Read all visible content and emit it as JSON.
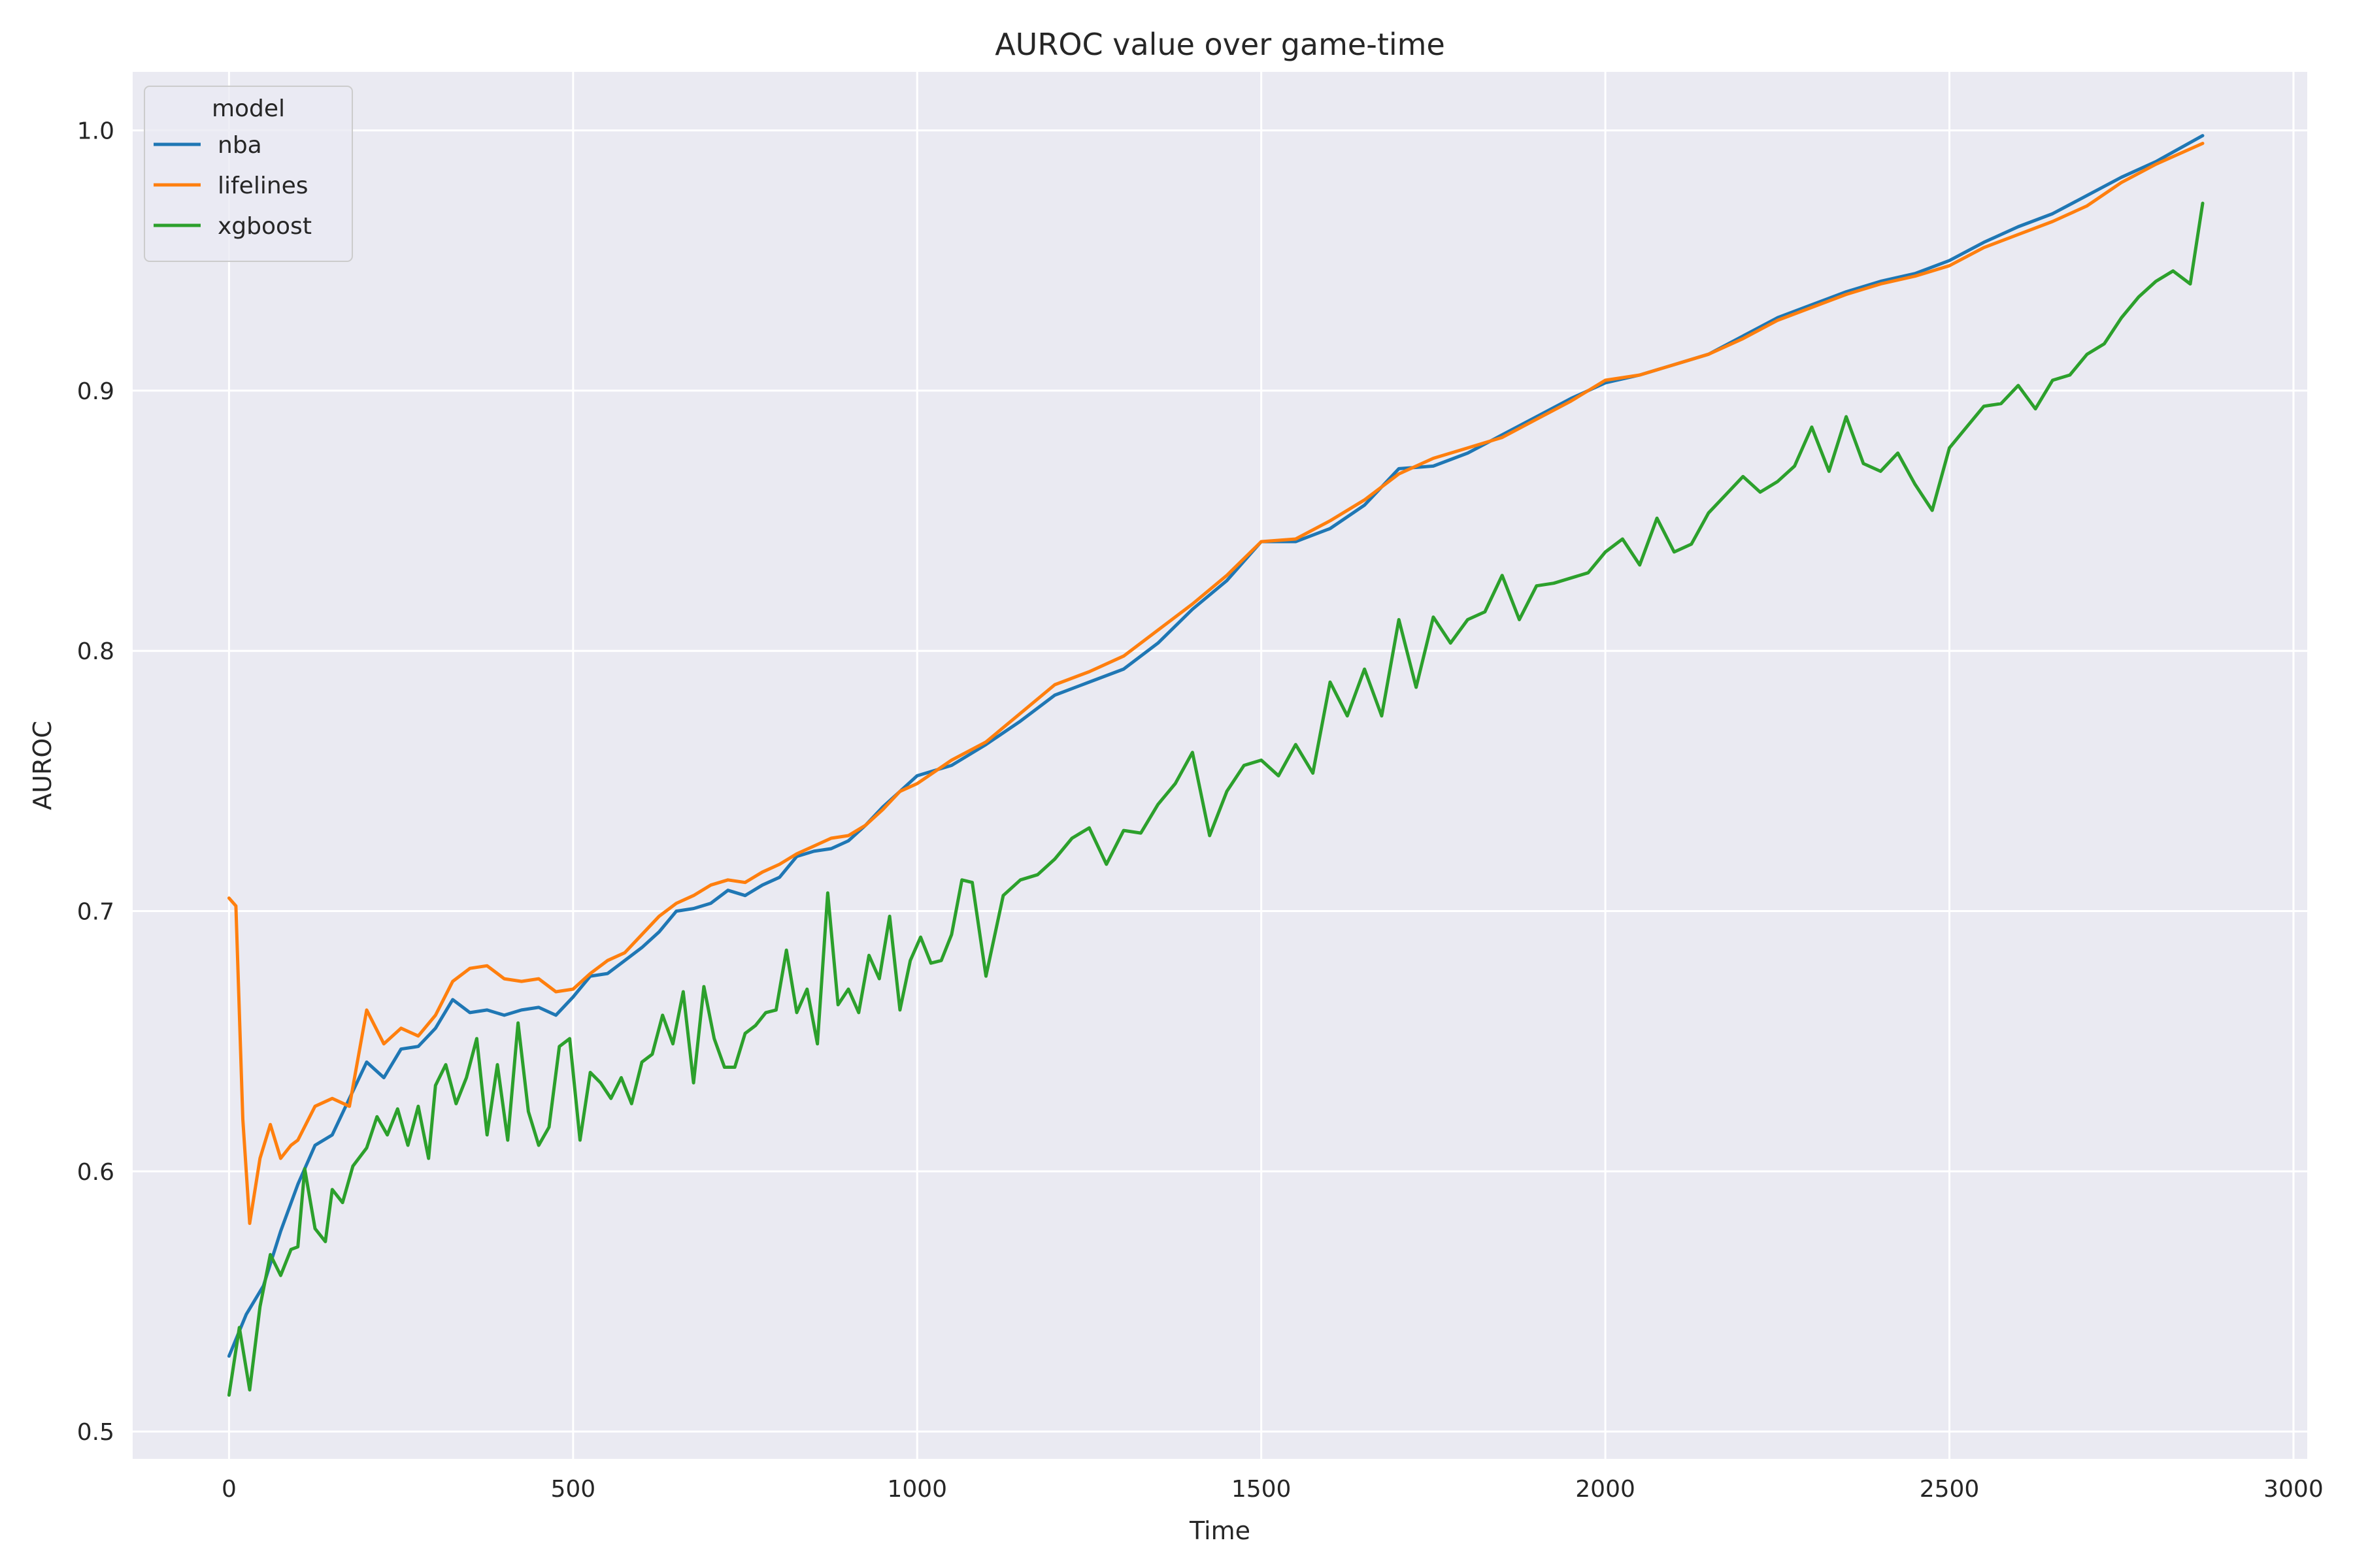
{
  "chart_data": {
    "type": "line",
    "title": "AUROC value over game-time",
    "xlabel": "Time",
    "ylabel": "AUROC",
    "xlim": [
      -140,
      3020
    ],
    "ylim": [
      0.4895,
      1.0225
    ],
    "xticks": [
      0,
      500,
      1000,
      1500,
      2000,
      2500,
      3000
    ],
    "xtick_labels": [
      "0",
      "500",
      "1000",
      "1500",
      "2000",
      "2500",
      "3000"
    ],
    "yticks": [
      0.5,
      0.6,
      0.7,
      0.8,
      0.9,
      1.0
    ],
    "ytick_labels": [
      "0.5",
      "0.6",
      "0.7",
      "0.8",
      "0.9",
      "1.0"
    ],
    "grid": true,
    "background": "#eaeaf2",
    "legend": {
      "title": "model",
      "placement": "top-left"
    },
    "series": [
      {
        "name": "nba",
        "color": "#1f77b4",
        "x": [
          0,
          25,
          50,
          75,
          100,
          125,
          150,
          175,
          200,
          225,
          250,
          275,
          300,
          325,
          350,
          375,
          400,
          425,
          450,
          475,
          500,
          525,
          550,
          575,
          600,
          625,
          650,
          675,
          700,
          725,
          750,
          775,
          800,
          825,
          850,
          875,
          900,
          925,
          950,
          975,
          1000,
          1050,
          1100,
          1150,
          1200,
          1250,
          1300,
          1350,
          1400,
          1450,
          1500,
          1550,
          1600,
          1650,
          1700,
          1750,
          1800,
          1850,
          1900,
          1950,
          2000,
          2050,
          2100,
          2150,
          2200,
          2250,
          2300,
          2350,
          2400,
          2450,
          2500,
          2550,
          2600,
          2650,
          2700,
          2750,
          2800,
          2868
        ],
        "y": [
          0.529,
          0.545,
          0.556,
          0.577,
          0.595,
          0.61,
          0.614,
          0.628,
          0.642,
          0.636,
          0.647,
          0.648,
          0.655,
          0.666,
          0.661,
          0.662,
          0.66,
          0.662,
          0.663,
          0.66,
          0.667,
          0.675,
          0.676,
          0.681,
          0.686,
          0.692,
          0.7,
          0.701,
          0.703,
          0.708,
          0.706,
          0.71,
          0.713,
          0.721,
          0.723,
          0.724,
          0.727,
          0.733,
          0.74,
          0.746,
          0.752,
          0.756,
          0.764,
          0.773,
          0.783,
          0.788,
          0.793,
          0.803,
          0.816,
          0.827,
          0.842,
          0.842,
          0.847,
          0.856,
          0.87,
          0.871,
          0.876,
          0.883,
          0.89,
          0.897,
          0.903,
          0.906,
          0.91,
          0.914,
          0.921,
          0.928,
          0.933,
          0.938,
          0.942,
          0.945,
          0.95,
          0.957,
          0.963,
          0.968,
          0.975,
          0.982,
          0.988,
          0.998
        ]
      },
      {
        "name": "lifelines",
        "color": "#ff7f0e",
        "x": [
          0,
          10,
          20,
          30,
          45,
          60,
          75,
          90,
          100,
          125,
          150,
          175,
          200,
          225,
          250,
          275,
          300,
          325,
          350,
          375,
          400,
          425,
          450,
          475,
          500,
          525,
          550,
          575,
          600,
          625,
          650,
          675,
          700,
          725,
          750,
          775,
          800,
          825,
          850,
          875,
          900,
          925,
          950,
          975,
          1000,
          1050,
          1100,
          1150,
          1200,
          1250,
          1300,
          1350,
          1400,
          1450,
          1500,
          1550,
          1600,
          1650,
          1700,
          1750,
          1800,
          1850,
          1900,
          1950,
          2000,
          2050,
          2100,
          2150,
          2200,
          2250,
          2300,
          2350,
          2400,
          2450,
          2500,
          2550,
          2600,
          2650,
          2700,
          2750,
          2800,
          2868
        ],
        "y": [
          0.705,
          0.702,
          0.62,
          0.58,
          0.605,
          0.618,
          0.605,
          0.61,
          0.612,
          0.625,
          0.628,
          0.625,
          0.662,
          0.649,
          0.655,
          0.652,
          0.66,
          0.673,
          0.678,
          0.679,
          0.674,
          0.673,
          0.674,
          0.669,
          0.67,
          0.676,
          0.681,
          0.684,
          0.691,
          0.698,
          0.703,
          0.706,
          0.71,
          0.712,
          0.711,
          0.715,
          0.718,
          0.722,
          0.725,
          0.728,
          0.729,
          0.733,
          0.739,
          0.746,
          0.749,
          0.758,
          0.765,
          0.776,
          0.787,
          0.792,
          0.798,
          0.808,
          0.818,
          0.829,
          0.842,
          0.843,
          0.85,
          0.858,
          0.868,
          0.874,
          0.878,
          0.882,
          0.889,
          0.896,
          0.904,
          0.906,
          0.91,
          0.914,
          0.92,
          0.927,
          0.932,
          0.937,
          0.941,
          0.944,
          0.948,
          0.955,
          0.96,
          0.965,
          0.971,
          0.98,
          0.987,
          0.995
        ]
      },
      {
        "name": "xgboost",
        "color": "#2ca02c",
        "x": [
          0,
          15,
          30,
          45,
          60,
          75,
          90,
          100,
          110,
          125,
          140,
          150,
          165,
          180,
          200,
          215,
          230,
          245,
          260,
          275,
          290,
          300,
          315,
          330,
          345,
          360,
          375,
          390,
          405,
          420,
          435,
          450,
          465,
          480,
          495,
          510,
          525,
          540,
          555,
          570,
          585,
          600,
          615,
          630,
          645,
          660,
          675,
          690,
          705,
          720,
          735,
          750,
          765,
          780,
          795,
          810,
          825,
          840,
          855,
          870,
          885,
          900,
          915,
          930,
          945,
          960,
          975,
          990,
          1005,
          1020,
          1035,
          1050,
          1065,
          1080,
          1100,
          1125,
          1150,
          1175,
          1200,
          1225,
          1250,
          1275,
          1300,
          1325,
          1350,
          1375,
          1400,
          1425,
          1450,
          1475,
          1500,
          1525,
          1550,
          1575,
          1600,
          1625,
          1650,
          1675,
          1700,
          1725,
          1750,
          1775,
          1800,
          1825,
          1850,
          1875,
          1900,
          1925,
          1950,
          1975,
          2000,
          2025,
          2050,
          2075,
          2100,
          2125,
          2150,
          2175,
          2200,
          2225,
          2250,
          2275,
          2300,
          2325,
          2350,
          2375,
          2400,
          2425,
          2450,
          2475,
          2500,
          2525,
          2550,
          2575,
          2600,
          2625,
          2650,
          2675,
          2700,
          2725,
          2750,
          2775,
          2800,
          2825,
          2850,
          2868
        ],
        "y": [
          0.514,
          0.54,
          0.516,
          0.548,
          0.568,
          0.56,
          0.57,
          0.571,
          0.601,
          0.578,
          0.573,
          0.593,
          0.588,
          0.602,
          0.609,
          0.621,
          0.614,
          0.624,
          0.61,
          0.625,
          0.605,
          0.633,
          0.641,
          0.626,
          0.636,
          0.651,
          0.614,
          0.641,
          0.612,
          0.657,
          0.623,
          0.61,
          0.617,
          0.648,
          0.651,
          0.612,
          0.638,
          0.634,
          0.628,
          0.636,
          0.626,
          0.642,
          0.645,
          0.66,
          0.649,
          0.669,
          0.634,
          0.671,
          0.651,
          0.64,
          0.64,
          0.653,
          0.656,
          0.661,
          0.662,
          0.685,
          0.661,
          0.67,
          0.649,
          0.707,
          0.664,
          0.67,
          0.661,
          0.683,
          0.674,
          0.698,
          0.662,
          0.681,
          0.69,
          0.68,
          0.681,
          0.691,
          0.712,
          0.711,
          0.675,
          0.706,
          0.712,
          0.714,
          0.72,
          0.728,
          0.732,
          0.718,
          0.731,
          0.73,
          0.741,
          0.749,
          0.761,
          0.729,
          0.746,
          0.756,
          0.758,
          0.752,
          0.764,
          0.753,
          0.788,
          0.775,
          0.793,
          0.775,
          0.812,
          0.786,
          0.813,
          0.803,
          0.812,
          0.815,
          0.829,
          0.812,
          0.825,
          0.826,
          0.828,
          0.83,
          0.838,
          0.843,
          0.833,
          0.851,
          0.838,
          0.841,
          0.853,
          0.86,
          0.867,
          0.861,
          0.865,
          0.871,
          0.886,
          0.869,
          0.89,
          0.872,
          0.869,
          0.876,
          0.864,
          0.854,
          0.878,
          0.886,
          0.894,
          0.895,
          0.902,
          0.893,
          0.904,
          0.906,
          0.914,
          0.918,
          0.928,
          0.936,
          0.942,
          0.946,
          0.941,
          0.972
        ]
      }
    ]
  }
}
